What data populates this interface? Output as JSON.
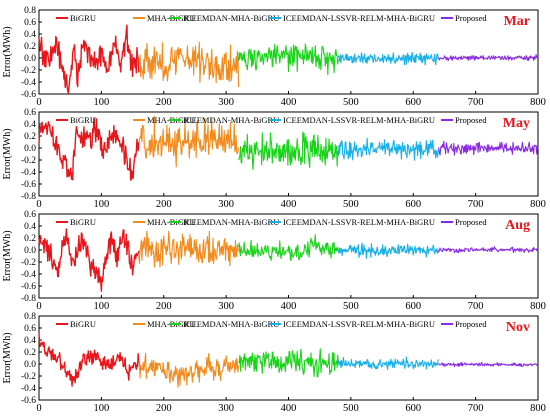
{
  "colors": {
    "BiGRU": "#e8161b",
    "MHA-BiGRU": "#f28a1c",
    "ICEEMDAN-MHA-BiGRU": "#18d418",
    "ICEEMDAN-LSSVR-RELM-MHA-BiGRU": "#18b0e8",
    "Proposed": "#8a2be2",
    "month_label": "#e8161b"
  },
  "chart_data": [
    {
      "type": "line",
      "month": "Mar",
      "ylabel": "Error(MWh)",
      "ylim": [
        -0.6,
        0.8
      ],
      "yticks": [
        "-0.6",
        "-0.4",
        "-0.2",
        "0.0",
        "0.2",
        "0.4",
        "0.6",
        "0.8"
      ],
      "xlim": [
        0,
        800
      ],
      "xticks": [
        "0",
        "100",
        "200",
        "300",
        "400",
        "500",
        "600",
        "700",
        "800"
      ],
      "legend_position": "top",
      "series": [
        {
          "name": "BiGRU",
          "x_range": [
            0,
            160
          ],
          "amp": 0.24,
          "offset": 0.02,
          "keys": [
            [
              0,
              0.25
            ],
            [
              15,
              -0.1
            ],
            [
              28,
              0.28
            ],
            [
              40,
              -0.35
            ],
            [
              48,
              -0.5
            ],
            [
              55,
              0.2
            ],
            [
              62,
              -0.4
            ],
            [
              70,
              0.3
            ],
            [
              80,
              0.15
            ],
            [
              90,
              -0.2
            ],
            [
              100,
              0.1
            ],
            [
              110,
              -0.25
            ],
            [
              120,
              0.25
            ],
            [
              130,
              -0.1
            ],
            [
              140,
              0.35
            ],
            [
              150,
              -0.2
            ],
            [
              160,
              0.0
            ]
          ]
        },
        {
          "name": "MHA-BiGRU",
          "x_range": [
            160,
            320
          ],
          "amp": 0.16,
          "offset": -0.03,
          "keys": [
            [
              160,
              0.0
            ],
            [
              200,
              -0.1
            ],
            [
              240,
              0.05
            ],
            [
              290,
              -0.15
            ],
            [
              320,
              -0.1
            ]
          ]
        },
        {
          "name": "ICEEMDAN-MHA-BiGRU",
          "x_range": [
            320,
            480
          ],
          "amp": 0.1,
          "offset": 0.0,
          "keys": [
            [
              320,
              0.0
            ],
            [
              400,
              0.02
            ],
            [
              480,
              0.0
            ]
          ]
        },
        {
          "name": "ICEEMDAN-LSSVR-RELM-MHA-BiGRU",
          "x_range": [
            480,
            640
          ],
          "amp": 0.05,
          "offset": -0.01,
          "keys": [
            [
              480,
              0.0
            ],
            [
              640,
              0.0
            ]
          ]
        },
        {
          "name": "Proposed",
          "x_range": [
            640,
            800
          ],
          "amp": 0.02,
          "offset": 0.0,
          "keys": [
            [
              640,
              0.0
            ],
            [
              800,
              0.0
            ]
          ]
        }
      ]
    },
    {
      "type": "line",
      "month": "May",
      "ylabel": "Error(MWh)",
      "ylim": [
        -0.8,
        0.6
      ],
      "yticks": [
        "-0.8",
        "-0.6",
        "-0.4",
        "-0.2",
        "0.0",
        "0.2",
        "0.4",
        "0.6"
      ],
      "xlim": [
        0,
        800
      ],
      "xticks": [
        "0",
        "100",
        "200",
        "300",
        "400",
        "500",
        "600",
        "700",
        "800"
      ],
      "legend_position": "top",
      "series": [
        {
          "name": "BiGRU",
          "x_range": [
            0,
            160
          ],
          "amp": 0.22,
          "offset": 0.05,
          "keys": [
            [
              0,
              0.2
            ],
            [
              10,
              0.45
            ],
            [
              25,
              0.1
            ],
            [
              40,
              -0.2
            ],
            [
              52,
              -0.55
            ],
            [
              60,
              0.2
            ],
            [
              75,
              0.1
            ],
            [
              90,
              0.3
            ],
            [
              105,
              -0.1
            ],
            [
              120,
              0.2
            ],
            [
              135,
              -0.05
            ],
            [
              150,
              -0.5
            ],
            [
              160,
              0.1
            ]
          ]
        },
        {
          "name": "MHA-BiGRU",
          "x_range": [
            160,
            320
          ],
          "amp": 0.15,
          "offset": 0.08,
          "keys": [
            [
              160,
              0.1
            ],
            [
              220,
              0.05
            ],
            [
              280,
              0.1
            ],
            [
              320,
              0.0
            ]
          ]
        },
        {
          "name": "ICEEMDAN-MHA-BiGRU",
          "x_range": [
            320,
            480
          ],
          "amp": 0.14,
          "offset": -0.05,
          "keys": [
            [
              320,
              -0.05
            ],
            [
              400,
              -0.05
            ],
            [
              480,
              0.0
            ]
          ]
        },
        {
          "name": "ICEEMDAN-LSSVR-RELM-MHA-BiGRU",
          "x_range": [
            480,
            640
          ],
          "amp": 0.08,
          "offset": -0.02,
          "keys": [
            [
              480,
              0.0
            ],
            [
              640,
              0.0
            ]
          ]
        },
        {
          "name": "Proposed",
          "x_range": [
            640,
            800
          ],
          "amp": 0.05,
          "offset": 0.0,
          "keys": [
            [
              640,
              0.0
            ],
            [
              800,
              0.0
            ]
          ]
        }
      ]
    },
    {
      "type": "line",
      "month": "Aug",
      "ylabel": "Error(MWh)",
      "ylim": [
        -0.8,
        0.6
      ],
      "yticks": [
        "-0.8",
        "-0.6",
        "-0.4",
        "-0.2",
        "0.0",
        "0.2",
        "0.4",
        "0.6"
      ],
      "xlim": [
        0,
        800
      ],
      "xticks": [
        "0",
        "100",
        "200",
        "300",
        "400",
        "500",
        "600",
        "700",
        "800"
      ],
      "legend_position": "top",
      "series": [
        {
          "name": "BiGRU",
          "x_range": [
            0,
            160
          ],
          "amp": 0.2,
          "offset": 0.0,
          "keys": [
            [
              0,
              0.2
            ],
            [
              15,
              0.0
            ],
            [
              30,
              -0.4
            ],
            [
              40,
              0.2
            ],
            [
              55,
              -0.2
            ],
            [
              70,
              0.25
            ],
            [
              85,
              -0.3
            ],
            [
              100,
              -0.5
            ],
            [
              115,
              0.2
            ],
            [
              125,
              -0.1
            ],
            [
              135,
              0.3
            ],
            [
              150,
              -0.3
            ],
            [
              160,
              0.0
            ]
          ]
        },
        {
          "name": "MHA-BiGRU",
          "x_range": [
            160,
            320
          ],
          "amp": 0.13,
          "offset": 0.0,
          "keys": [
            [
              160,
              0.0
            ],
            [
              240,
              0.02
            ],
            [
              320,
              0.0
            ]
          ]
        },
        {
          "name": "ICEEMDAN-MHA-BiGRU",
          "x_range": [
            320,
            480
          ],
          "amp": 0.07,
          "offset": 0.0,
          "keys": [
            [
              320,
              0.0
            ],
            [
              420,
              -0.05
            ],
            [
              440,
              0.1
            ],
            [
              480,
              0.0
            ]
          ]
        },
        {
          "name": "ICEEMDAN-LSSVR-RELM-MHA-BiGRU",
          "x_range": [
            480,
            640
          ],
          "amp": 0.05,
          "offset": -0.01,
          "keys": [
            [
              480,
              0.0
            ],
            [
              640,
              0.0
            ]
          ]
        },
        {
          "name": "Proposed",
          "x_range": [
            640,
            800
          ],
          "amp": 0.02,
          "offset": 0.0,
          "keys": [
            [
              640,
              0.0
            ],
            [
              800,
              0.0
            ]
          ]
        }
      ]
    },
    {
      "type": "line",
      "month": "Nov",
      "ylabel": "Error(MWh)",
      "ylim": [
        -0.6,
        0.8
      ],
      "yticks": [
        "-0.6",
        "-0.4",
        "-0.2",
        "0.0",
        "0.2",
        "0.4",
        "0.6",
        "0.8"
      ],
      "xlim": [
        0,
        800
      ],
      "xticks": [
        "0",
        "100",
        "200",
        "300",
        "400",
        "500",
        "600",
        "700",
        "800"
      ],
      "legend_position": "top",
      "series": [
        {
          "name": "BiGRU",
          "x_range": [
            0,
            160
          ],
          "amp": 0.14,
          "offset": 0.05,
          "keys": [
            [
              0,
              0.4
            ],
            [
              10,
              0.2
            ],
            [
              25,
              0.1
            ],
            [
              40,
              -0.1
            ],
            [
              55,
              -0.3
            ],
            [
              70,
              0.0
            ],
            [
              90,
              0.15
            ],
            [
              110,
              -0.05
            ],
            [
              130,
              0.1
            ],
            [
              145,
              -0.15
            ],
            [
              160,
              0.0
            ]
          ]
        },
        {
          "name": "MHA-BiGRU",
          "x_range": [
            160,
            320
          ],
          "amp": 0.1,
          "offset": -0.04,
          "keys": [
            [
              160,
              0.0
            ],
            [
              220,
              -0.15
            ],
            [
              260,
              -0.05
            ],
            [
              320,
              0.0
            ]
          ]
        },
        {
          "name": "ICEEMDAN-MHA-BiGRU",
          "x_range": [
            320,
            480
          ],
          "amp": 0.1,
          "offset": 0.03,
          "keys": [
            [
              320,
              0.0
            ],
            [
              400,
              0.05
            ],
            [
              480,
              0.0
            ]
          ]
        },
        {
          "name": "ICEEMDAN-LSSVR-RELM-MHA-BiGRU",
          "x_range": [
            480,
            640
          ],
          "amp": 0.04,
          "offset": 0.0,
          "keys": [
            [
              480,
              0.0
            ],
            [
              640,
              0.0
            ]
          ]
        },
        {
          "name": "Proposed",
          "x_range": [
            640,
            800
          ],
          "amp": 0.015,
          "offset": -0.02,
          "keys": [
            [
              640,
              0.0
            ],
            [
              800,
              0.0
            ]
          ]
        }
      ]
    }
  ]
}
